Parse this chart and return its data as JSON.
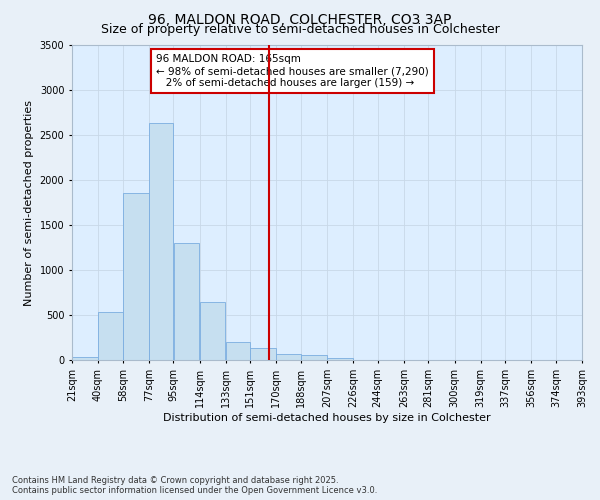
{
  "title1": "96, MALDON ROAD, COLCHESTER, CO3 3AP",
  "title2": "Size of property relative to semi-detached houses in Colchester",
  "xlabel": "Distribution of semi-detached houses by size in Colchester",
  "ylabel": "Number of semi-detached properties",
  "footnote1": "Contains HM Land Registry data © Crown copyright and database right 2025.",
  "footnote2": "Contains public sector information licensed under the Open Government Licence v3.0.",
  "bar_left_edges": [
    21,
    40,
    58,
    77,
    95,
    114,
    133,
    151,
    170,
    188,
    207,
    226,
    244,
    263,
    281,
    300,
    319,
    337,
    356,
    374
  ],
  "bar_widths": [
    19,
    18,
    19,
    18,
    19,
    19,
    18,
    19,
    18,
    19,
    19,
    18,
    19,
    18,
    19,
    19,
    18,
    19,
    18,
    19
  ],
  "bar_heights": [
    30,
    530,
    1850,
    2630,
    1300,
    640,
    200,
    130,
    65,
    60,
    20,
    5,
    5,
    0,
    0,
    0,
    0,
    0,
    0,
    0
  ],
  "bar_color": "#c6dff0",
  "bar_edgecolor": "#7aade0",
  "vline_x": 165,
  "vline_color": "#cc0000",
  "vline_lw": 1.5,
  "annotation_text": "96 MALDON ROAD: 165sqm\n← 98% of semi-detached houses are smaller (7,290)\n   2% of semi-detached houses are larger (159) →",
  "annotation_box_color": "#cc0000",
  "annotation_fontsize": 7.5,
  "xlim": [
    21,
    393
  ],
  "ylim": [
    0,
    3500
  ],
  "yticks": [
    0,
    500,
    1000,
    1500,
    2000,
    2500,
    3000,
    3500
  ],
  "xtick_labels": [
    "21sqm",
    "40sqm",
    "58sqm",
    "77sqm",
    "95sqm",
    "114sqm",
    "133sqm",
    "151sqm",
    "170sqm",
    "188sqm",
    "207sqm",
    "226sqm",
    "244sqm",
    "263sqm",
    "281sqm",
    "300sqm",
    "319sqm",
    "337sqm",
    "356sqm",
    "374sqm",
    "393sqm"
  ],
  "xtick_positions": [
    21,
    40,
    58,
    77,
    95,
    114,
    133,
    151,
    170,
    188,
    207,
    226,
    244,
    263,
    281,
    300,
    319,
    337,
    356,
    374,
    393
  ],
  "grid_color": "#c8d8e8",
  "fig_bg_color": "#e8f0f8",
  "plot_bg_color": "#ddeeff",
  "title_fontsize": 10,
  "subtitle_fontsize": 9,
  "axis_label_fontsize": 8,
  "tick_fontsize": 7,
  "ylabel_fontsize": 8
}
